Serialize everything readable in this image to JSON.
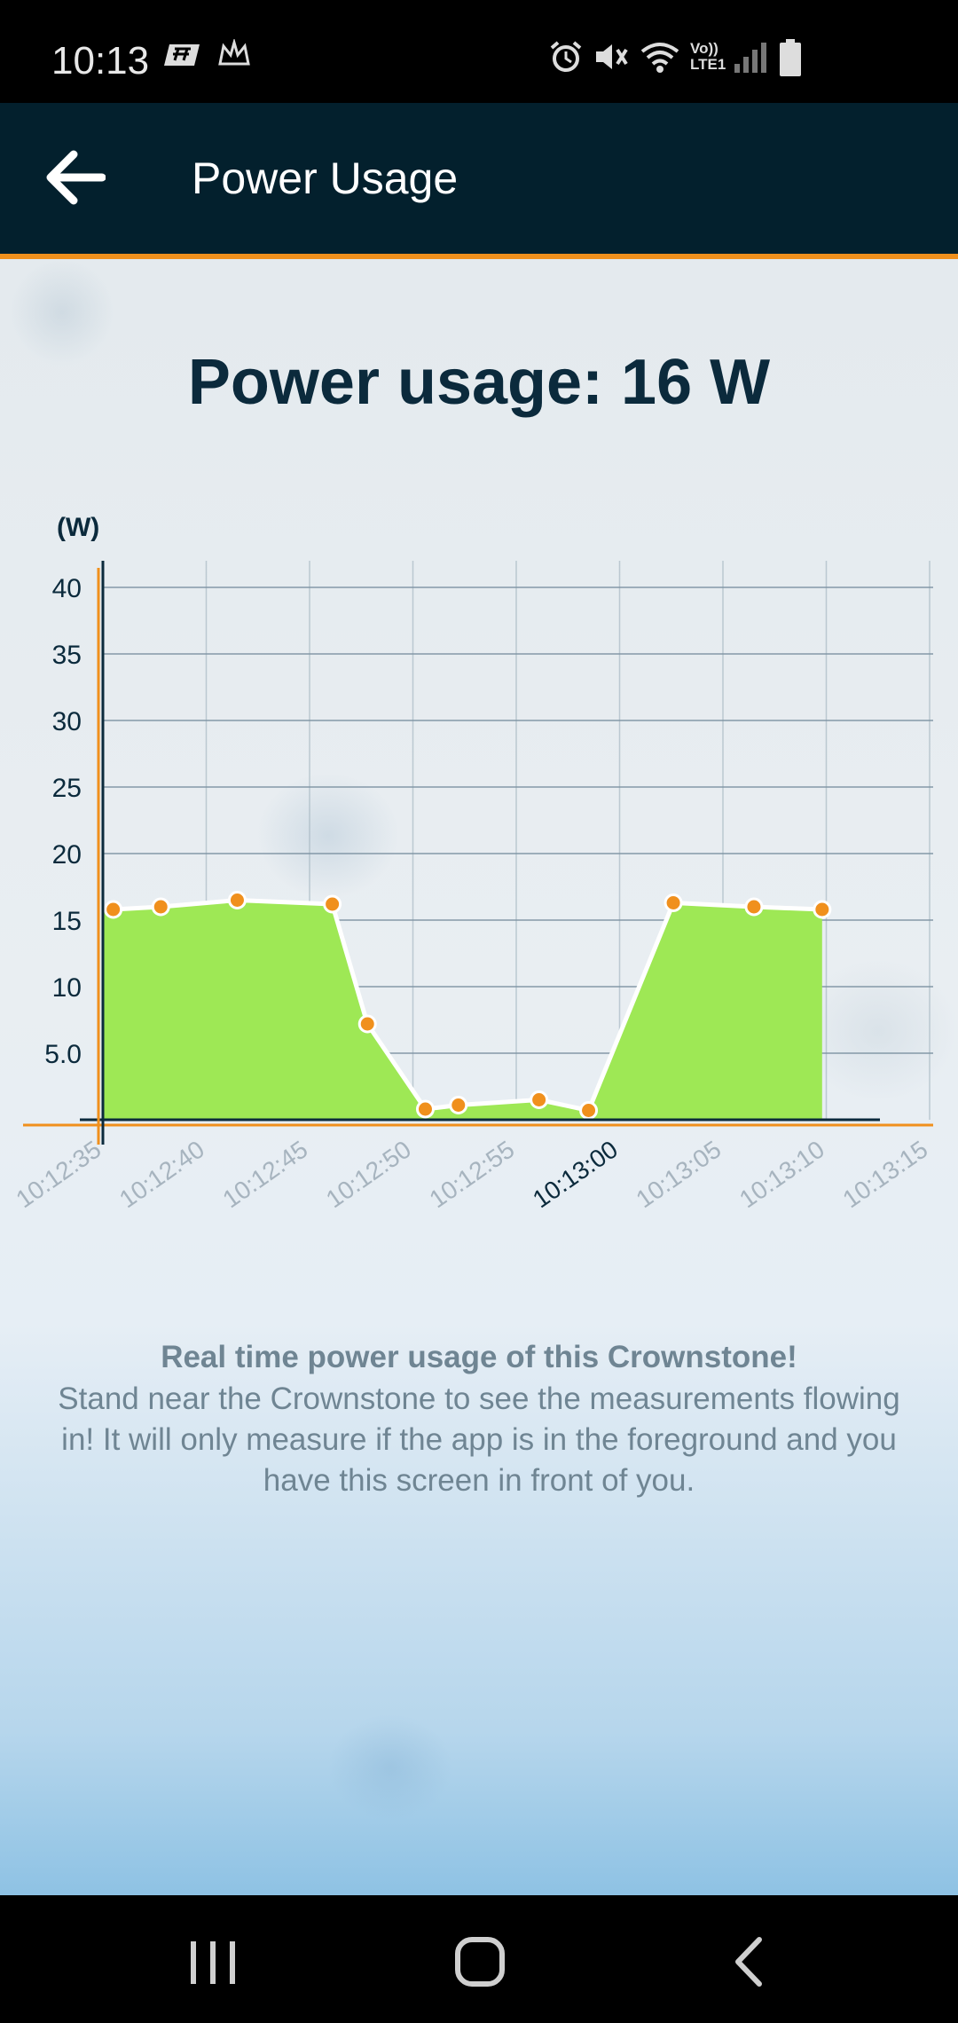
{
  "status_bar": {
    "time": "10:13",
    "network_label": "Vo)) LTE1"
  },
  "header": {
    "title": "Power Usage",
    "back_icon": "arrow-left-icon"
  },
  "main": {
    "power_title": "Power usage: 16 W",
    "description_title": "Real time power usage of this Crownstone!",
    "description_body": "Stand near the Crownstone to see the measurements flowing in! It will only measure if the app is in the foreground and you have this screen in front of you."
  },
  "chart_data": {
    "type": "area",
    "ylabel": "(W)",
    "ylim": [
      0,
      40
    ],
    "y_ticks": [
      "5.0",
      "10",
      "15",
      "20",
      "25",
      "30",
      "35",
      "40"
    ],
    "x_ticks": [
      "10:12:35",
      "10:12:40",
      "10:12:45",
      "10:12:50",
      "10:12:55",
      "10:13:00",
      "10:13:05",
      "10:13:10",
      "10:13:15"
    ],
    "x_ticks_active": "10:13:00",
    "grid": true,
    "colors": {
      "fill": "#9ee855",
      "line": "#ffffff",
      "point": "#f0901d",
      "axis": "#f0901d"
    },
    "x": [
      "10:12:35.5",
      "10:12:37.8",
      "10:12:41.5",
      "10:12:46.1",
      "10:12:47.8",
      "10:12:50.6",
      "10:12:52.2",
      "10:12:56.1",
      "10:12:58.5",
      "10:13:02.6",
      "10:13:06.5",
      "10:13:09.8"
    ],
    "values": [
      15.8,
      16.0,
      16.5,
      16.2,
      7.2,
      0.8,
      1.1,
      1.5,
      0.7,
      16.3,
      16.0,
      15.8
    ]
  },
  "nav_bar": {
    "recents_icon": "recent-apps-icon",
    "home_icon": "home-icon",
    "back_icon": "nav-back-icon"
  }
}
